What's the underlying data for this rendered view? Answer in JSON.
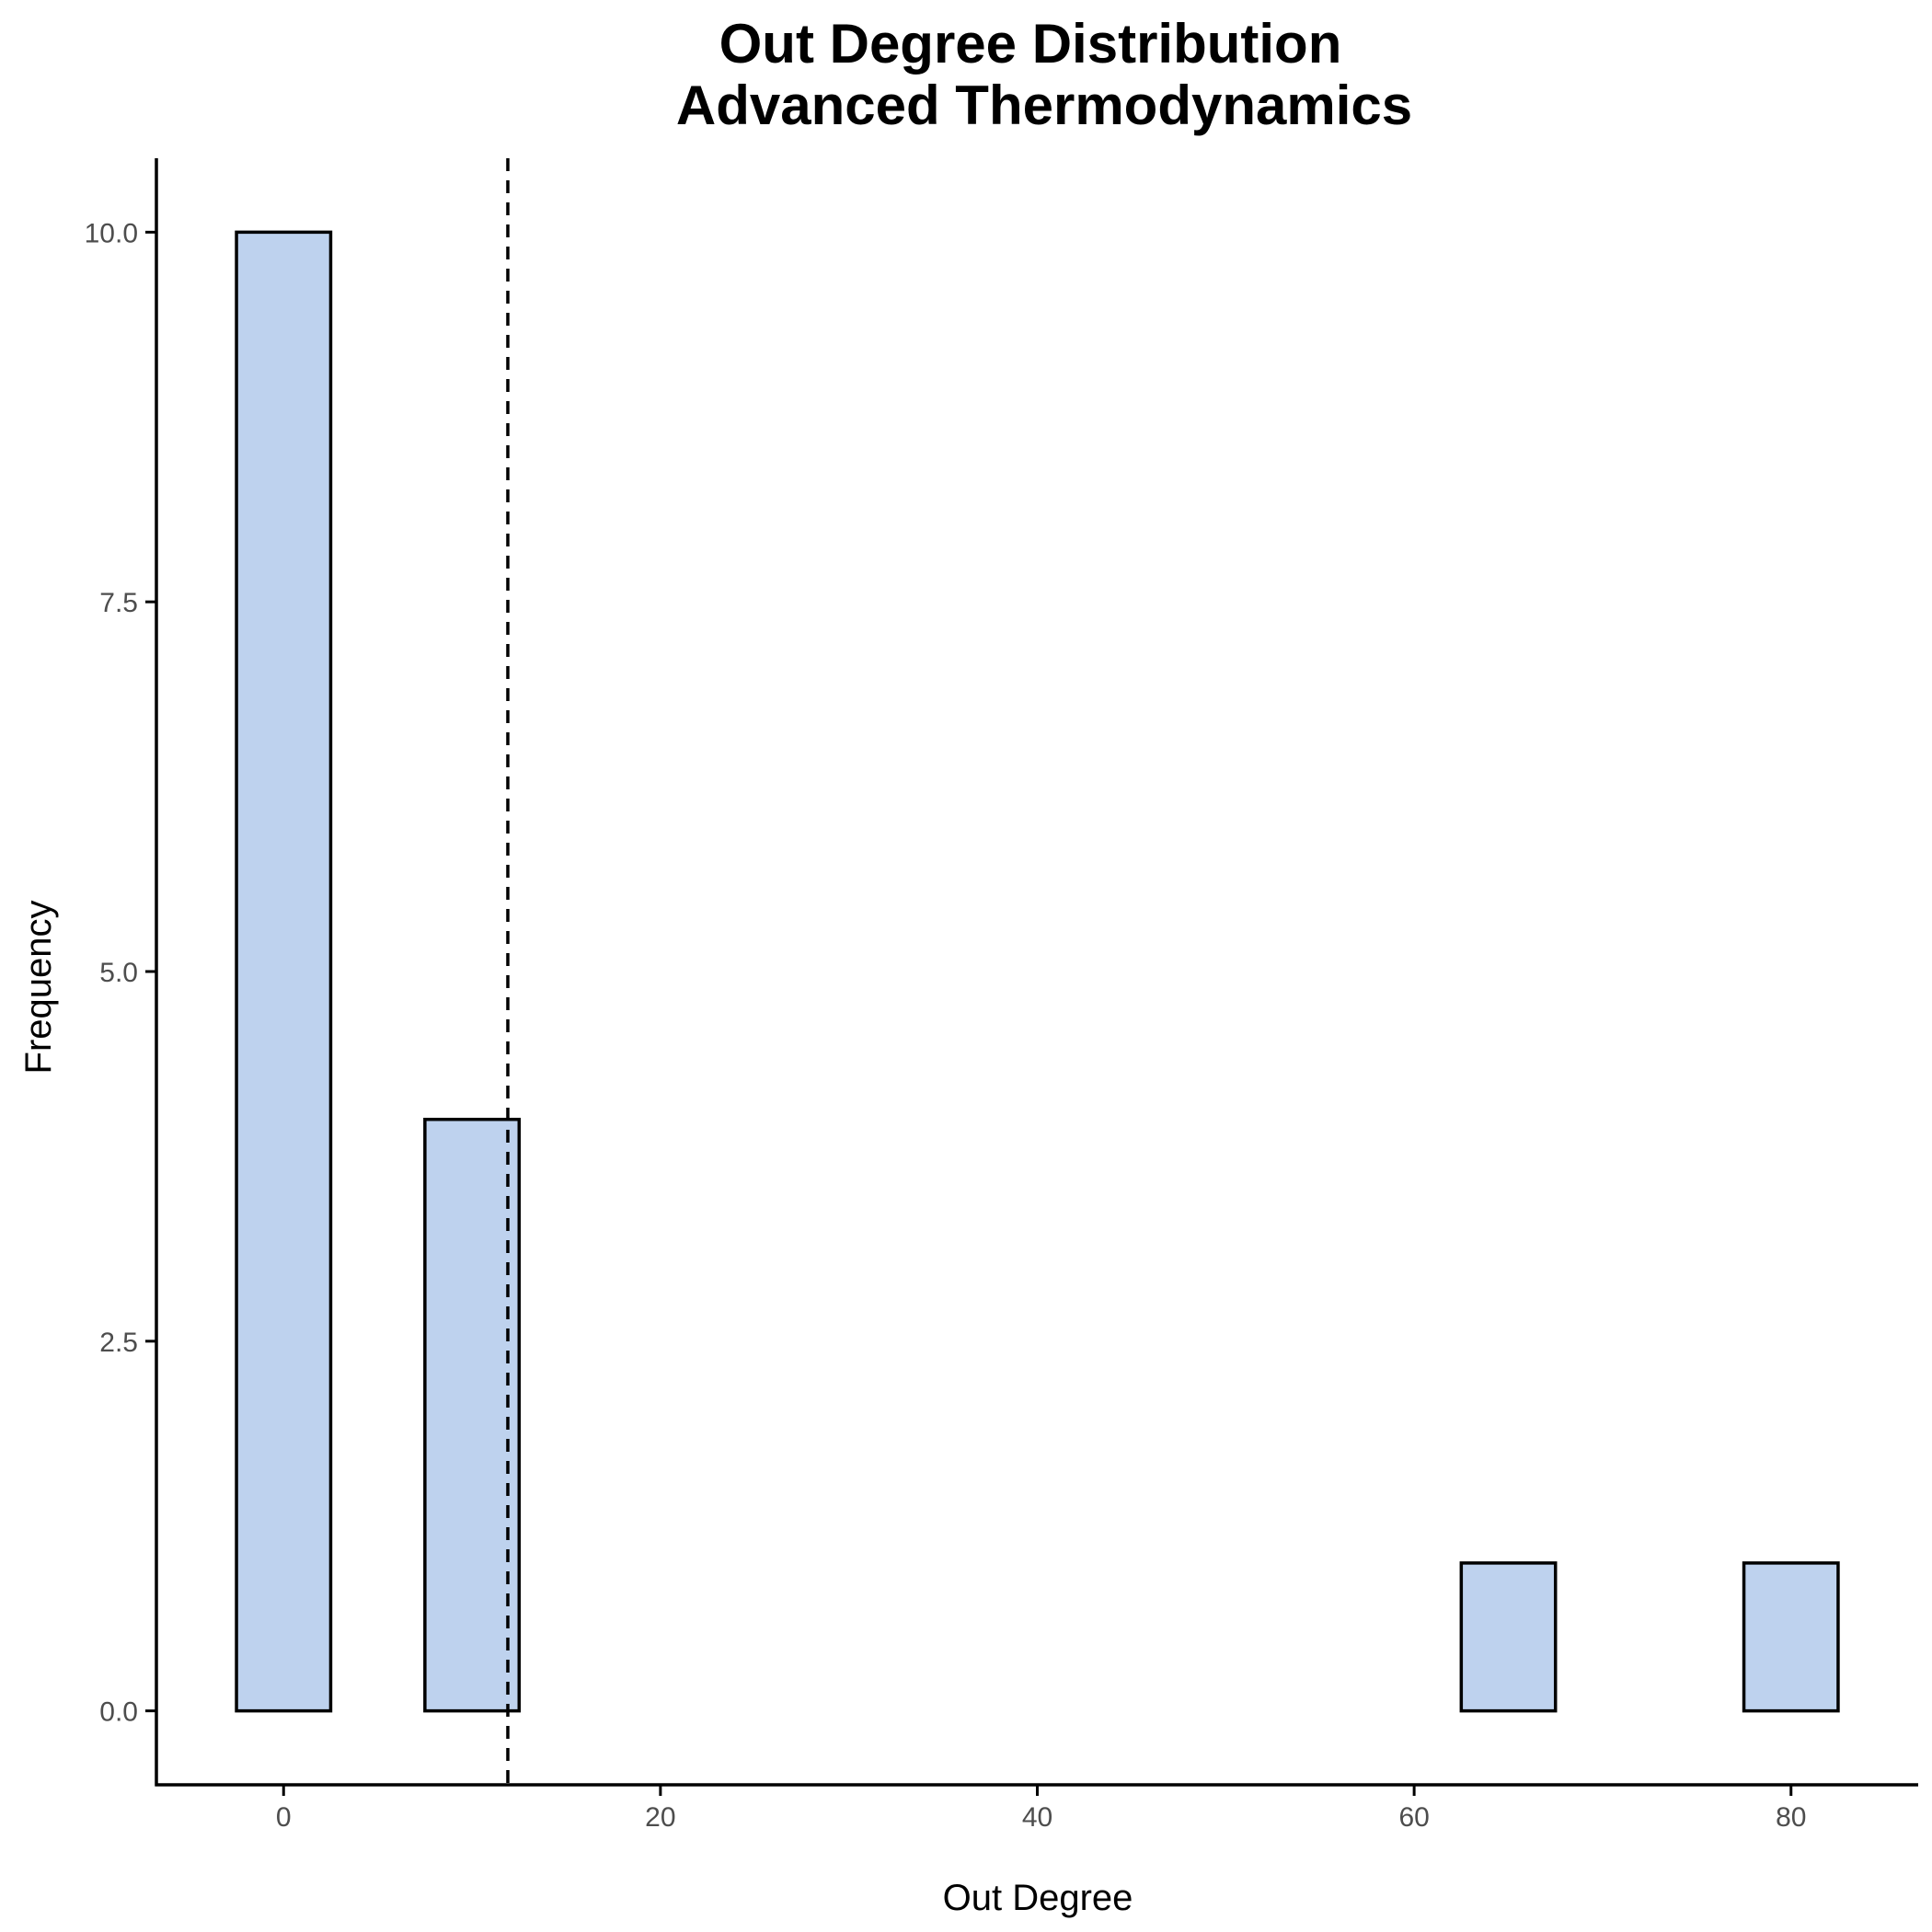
{
  "chart_data": {
    "type": "bar",
    "title_lines": [
      "Out Degree Distribution",
      "Advanced Thermodynamics"
    ],
    "xlabel": "Out Degree",
    "ylabel": "Frequency",
    "bin_width": 5,
    "bins": [
      {
        "center": 0,
        "count": 10
      },
      {
        "center": 5,
        "count": 0
      },
      {
        "center": 10,
        "count": 4
      },
      {
        "center": 15,
        "count": 0
      },
      {
        "center": 20,
        "count": 0
      },
      {
        "center": 25,
        "count": 0
      },
      {
        "center": 30,
        "count": 0
      },
      {
        "center": 35,
        "count": 0
      },
      {
        "center": 40,
        "count": 0
      },
      {
        "center": 45,
        "count": 0
      },
      {
        "center": 50,
        "count": 0
      },
      {
        "center": 55,
        "count": 0
      },
      {
        "center": 60,
        "count": 0
      },
      {
        "center": 65,
        "count": 1
      },
      {
        "center": 70,
        "count": 0
      },
      {
        "center": 75,
        "count": 0
      },
      {
        "center": 80,
        "count": 1
      }
    ],
    "vline_x": 11.9,
    "vline_style": "dashed",
    "xlim": [
      -6.75,
      86.75
    ],
    "ylim": [
      -0.5,
      10.5
    ],
    "x_ticks": [
      0,
      20,
      40,
      60,
      80
    ],
    "x_tick_labels": [
      "0",
      "20",
      "40",
      "60",
      "80"
    ],
    "y_ticks": [
      0,
      2.5,
      5,
      7.5,
      10
    ],
    "y_tick_labels": [
      "0.0",
      "2.5",
      "5.0",
      "7.5",
      "10.0"
    ],
    "grid": false,
    "legend": "none",
    "colors": {
      "bar_fill": "#bed2ee",
      "bar_stroke": "#000000",
      "vline": "#000000",
      "axis": "#000000",
      "tick_label": "#4d4d4d"
    }
  }
}
